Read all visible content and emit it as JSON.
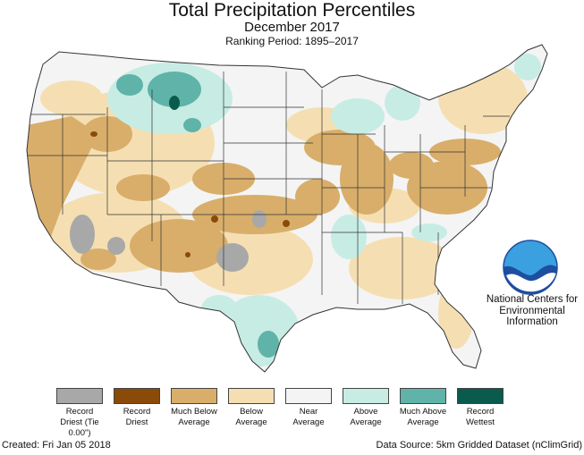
{
  "header": {
    "title": "Total Precipitation Percentiles",
    "subtitle": "December 2017",
    "ranking_period": "Ranking Period: 1895–2017"
  },
  "legend": {
    "items": [
      {
        "label": "Record Driest (Tie 0.00\")",
        "color": "#a8a8a8"
      },
      {
        "label": "Record Driest",
        "color": "#8a4a08"
      },
      {
        "label": "Much Below Average",
        "color": "#d8ae6a"
      },
      {
        "label": "Below Average",
        "color": "#f5dfb2"
      },
      {
        "label": "Near Average",
        "color": "#f4f4f4"
      },
      {
        "label": "Above Average",
        "color": "#c7ece4"
      },
      {
        "label": "Much Above Average",
        "color": "#5fb3a8"
      },
      {
        "label": "Record Wettest",
        "color": "#0a5a4e"
      }
    ]
  },
  "logo": {
    "name": "NOAA",
    "org_name": "National Centers for Environmental Information"
  },
  "footer": {
    "created": "Created: Fri Jan 05 2018",
    "data_source": "Data Source: 5km Gridded Dataset (nClimGrid)"
  }
}
